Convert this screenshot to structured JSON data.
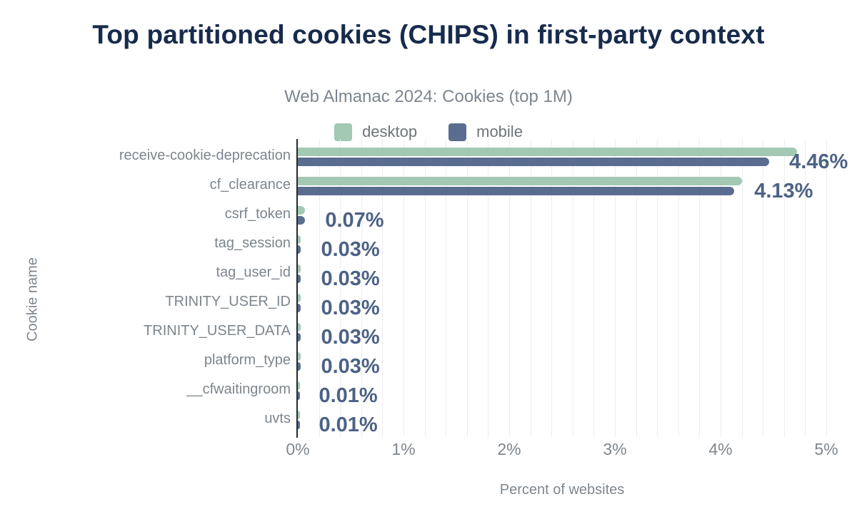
{
  "chart_data": {
    "type": "bar",
    "orientation": "horizontal",
    "title": "Top partitioned cookies (CHIPS) in first-party context",
    "subtitle": "Web Almanac 2024: Cookies (top 1M)",
    "xlabel": "Percent of websites",
    "ylabel": "Cookie name",
    "xlim": [
      0,
      5
    ],
    "x_ticks": [
      "0%",
      "1%",
      "2%",
      "3%",
      "4%",
      "5%"
    ],
    "grid": "vertical-minor",
    "grid_minor_step_pct": 0.2,
    "legend_position": "top-center",
    "categories": [
      "receive-cookie-deprecation",
      "cf_clearance",
      "csrf_token",
      "tag_session",
      "tag_user_id",
      "TRINITY_USER_ID",
      "TRINITY_USER_DATA",
      "platform_type",
      "__cfwaitingroom",
      "uvts"
    ],
    "series": [
      {
        "name": "desktop",
        "color": "#a3c8b3",
        "values": [
          4.72,
          4.2,
          0.07,
          0.03,
          0.03,
          0.03,
          0.03,
          0.03,
          0.01,
          0.01
        ]
      },
      {
        "name": "mobile",
        "color": "#5a6d90",
        "values": [
          4.46,
          4.13,
          0.07,
          0.03,
          0.03,
          0.03,
          0.03,
          0.03,
          0.01,
          0.01
        ]
      }
    ],
    "value_labels": [
      "4.46%",
      "4.13%",
      "0.07%",
      "0.03%",
      "0.03%",
      "0.03%",
      "0.03%",
      "0.03%",
      "0.01%",
      "0.01%"
    ],
    "value_label_series": "mobile",
    "colors": {
      "title": "#172b4c",
      "subtitle": "#7d858f",
      "axis_text": "#7f868e",
      "value_label": "#4c6285",
      "axis_line": "#26292f",
      "gridline": "#ededf1"
    }
  }
}
